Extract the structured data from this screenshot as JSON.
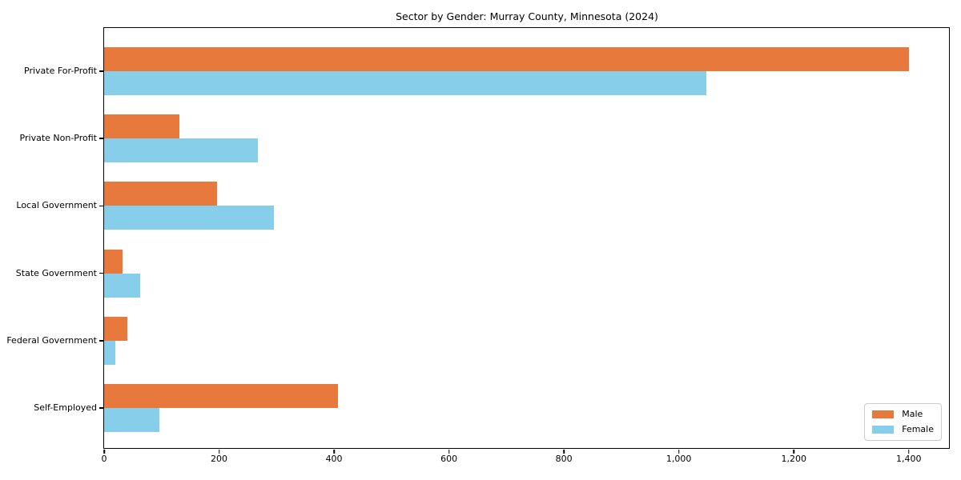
{
  "title": "Sector by Gender: Murray County, Minnesota (2024)",
  "chart_data": {
    "type": "bar",
    "orientation": "horizontal",
    "title": "Sector by Gender: Murray County, Minnesota (2024)",
    "categories": [
      "Private For-Profit",
      "Private Non-Profit",
      "Local Government",
      "State Government",
      "Federal Government",
      "Self-Employed"
    ],
    "series": [
      {
        "name": "Male",
        "color": "#e8793d",
        "values": [
          1400,
          131,
          196,
          32,
          41,
          407
        ]
      },
      {
        "name": "Female",
        "color": "#87ceeb",
        "values": [
          1048,
          268,
          296,
          62,
          20,
          96
        ]
      }
    ],
    "xlim": [
      0,
      1470
    ],
    "x_ticks": [
      0,
      200,
      400,
      600,
      800,
      1000,
      1200,
      1400
    ],
    "x_tick_labels": [
      "0",
      "200",
      "400",
      "600",
      "800",
      "1,000",
      "1,200",
      "1,400"
    ],
    "xlabel": "",
    "ylabel": "",
    "grid": false,
    "legend_position": "lower right",
    "background_color": "#ffffff",
    "spine_color": "#000000"
  }
}
